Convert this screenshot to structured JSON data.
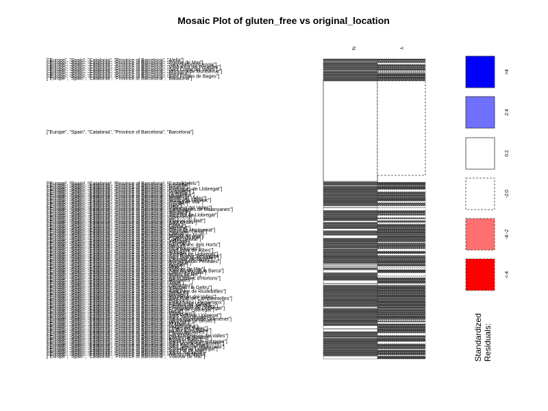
{
  "chart_data": {
    "type": "mosaic",
    "title": "Mosaic Plot of gluten_free vs original_location",
    "columns": [
      "N",
      "Y"
    ],
    "highlighted_row": {
      "label": "[\"Europe\", \"Spain\", \"Catalonia\", \"Province of Barcelona\", \"Barcelona\"]",
      "residual_class": "0:2"
    },
    "row_labels": [
      "[\"Europe\", \"Spain\", \"Catalonia\", \"Province of Barcelona\", \"Alella\"]",
      "[\"Europe\", \"Spain\", \"Catalonia\", \"Province of Barcelona\", \"Arenys de Mar\"]",
      "[\"Europe\", \"Spain\", \"Catalonia\", \"Province of Barcelona\", \"Sant Sadurni d'Anoia\"]",
      "[\"Europe\", \"Spain\", \"Catalonia\", \"Province of Barcelona\", \"Vilafranca del Penedes\"]",
      "[\"Europe\", \"Spain\", \"Catalonia\", \"Province of Barcelona\", \"Sant Cugat del Valles\"]",
      "[\"Europe\", \"Spain\", \"Catalonia\", \"Province of Barcelona\", \"Monistrol de Montserrat\"]",
      "[\"Europe\", \"Spain\", \"Catalonia\", \"Province of Barcelona\", \"Manresa\"]",
      "[\"Europe\", \"Spain\", \"Catalonia\", \"Province of Barcelona\", \"Sant Fruitos de Bages\"]",
      "[\"Europe\", \"Spain\", \"Catalonia\", \"Province of Barcelona\", \"Badalona\"]",
      "[\"Europe\", \"Spain\", \"Catalonia\", \"Province of Barcelona\", \"Castelldefels\"]",
      "[\"Europe\", \"Spain\", \"Catalonia\", \"Province of Barcelona\", \"Cornella\"]",
      "[\"Europe\", \"Spain\", \"Catalonia\", \"Province of Barcelona\", \"Dosrius\"]",
      "[\"Europe\", \"Spain\", \"Catalonia\", \"Province of Barcelona\", \"Esplugues de Llobregat\"]",
      "[\"Europe\", \"Spain\", \"Catalonia\", \"Province of Barcelona\", \"Granollers\"]",
      "[\"Europe\", \"Spain\", \"Catalonia\", \"Province of Barcelona\", \"Igualada\"]",
      "[\"Europe\", \"Spain\", \"Catalonia\", \"Province of Barcelona\", \"La Garriga\"]",
      "[\"Europe\", \"Spain\", \"Catalonia\", \"Province of Barcelona\", \"Mataro\"]",
      "[\"Europe\", \"Spain\", \"Catalonia\", \"Province of Barcelona\", \"Mollet del Valles\"]",
      "[\"Europe\", \"Spain\", \"Catalonia\", \"Province of Barcelona\", \"Montcada i Reixac\"]",
      "[\"Europe\", \"Spain\", \"Catalonia\", \"Province of Barcelona\", \"Premia de Mar\"]",
      "[\"Europe\", \"Spain\", \"Catalonia\", \"Province of Barcelona\", \"Ripollet\"]",
      "[\"Europe\", \"Spain\", \"Catalonia\", \"Province of Barcelona\", \"Rubi\"]",
      "[\"Europe\", \"Spain\", \"Catalonia\", \"Province of Barcelona\", \"Vilanova del Valles\"]",
      "[\"Europe\", \"Spain\", \"Catalonia\", \"Province of Barcelona\", \"Santa Agnes de Malanyanes\"]",
      "[\"Europe\", \"Spain\", \"Catalonia\", \"Province of Barcelona\", \"Sabadell\"]",
      "[\"Europe\", \"Spain\", \"Catalonia\", \"Province of Barcelona\", \"Terrassa\"]",
      "[\"Europe\", \"Spain\", \"Catalonia\", \"Province of Barcelona\", \"Sant Boi de Llobregat\"]",
      "[\"Europe\", \"Spain\", \"Catalonia\", \"Province of Barcelona\", \"Sentmenat\"]",
      "[\"Europe\", \"Spain\", \"Catalonia\", \"Province of Barcelona\", \"Vic\"]",
      "[\"Europe\", \"Spain\", \"Catalonia\", \"Province of Barcelona\", \"Vilassar de Dalt\"]",
      "[\"Europe\", \"Spain\", \"Catalonia\", \"Province of Barcelona\", \"Sant Celoni\"]",
      "[\"Europe\", \"Spain\", \"Catalonia\", \"Province of Barcelona\", \"Piera\"]",
      "[\"Europe\", \"Spain\", \"Catalonia\", \"Province of Barcelona\", \"Gelida\"]",
      "[\"Europe\", \"Spain\", \"Catalonia\", \"Province of Barcelona\", \"Martorell\"]",
      "[\"Europe\", \"Spain\", \"Catalonia\", \"Province of Barcelona\", \"Olesa de Montserrat\"]",
      "[\"Europe\", \"Spain\", \"Catalonia\", \"Province of Barcelona\", \"Sant Joan Despi\"]",
      "[\"Europe\", \"Spain\", \"Catalonia\", \"Province of Barcelona\", \"Calella\"]",
      "[\"Europe\", \"Spain\", \"Catalonia\", \"Province of Barcelona\", \"Malgrat de Mar\"]",
      "[\"Europe\", \"Spain\", \"Catalonia\", \"Province of Barcelona\", \"Pineda de Mar\"]",
      "[\"Europe\", \"Spain\", \"Catalonia\", \"Province of Barcelona\", \"Canet de Mar\"]",
      "[\"Europe\", \"Spain\", \"Catalonia\", \"Province of Barcelona\", \"Vallirana\"]",
      "[\"Europe\", \"Spain\", \"Catalonia\", \"Province of Barcelona\", \"Cervello\"]",
      "[\"Europe\", \"Spain\", \"Catalonia\", \"Province of Barcelona\", \"Sant Vicenc dels Horts\"]",
      "[\"Europe\", \"Spain\", \"Catalonia\", \"Province of Barcelona\", \"Berga\"]",
      "[\"Europe\", \"Spain\", \"Catalonia\", \"Province of Barcelona\", \"Lliça d'Amunt\"]",
      "[\"Europe\", \"Spain\", \"Catalonia\", \"Province of Barcelona\", \"Sant Pere de Ribes\"]",
      "[\"Europe\", \"Spain\", \"Catalonia\", \"Province of Barcelona\", \"Subirats\"]",
      "[\"Europe\", \"Spain\", \"Catalonia\", \"Province of Barcelona\", \"Torrelles de Llobregat\"]",
      "[\"Europe\", \"Spain\", \"Catalonia\", \"Province of Barcelona\", \"Sant Esteve Sesrovires\"]",
      "[\"Europe\", \"Spain\", \"Catalonia\", \"Province of Barcelona\", \"Sant Quirze del Valles\"]",
      "[\"Europe\", \"Spain\", \"Catalonia\", \"Province of Barcelona\", \"Castellar del Valles\"]",
      "[\"Europe\", \"Spain\", \"Catalonia\", \"Province of Barcelona\", \"Avinyonet del Penedes\"]",
      "[\"Europe\", \"Spain\", \"Catalonia\", \"Province of Barcelona\", \"Torrelavit\"]",
      "[\"Europe\", \"Spain\", \"Catalonia\", \"Province of Barcelona\", \"Begues\"]",
      "[\"Europe\", \"Spain\", \"Catalonia\", \"Province of Barcelona\", \"Moia\"]",
      "[\"Europe\", \"Spain\", \"Catalonia\", \"Province of Barcelona\", \"Vilassar de Mar\"]",
      "[\"Europe\", \"Spain\", \"Catalonia\", \"Province of Barcelona\", \"Sant Andreu de la Barca\"]",
      "[\"Europe\", \"Spain\", \"Catalonia\", \"Province of Barcelona\", \"Cabrera d'Anoia\"]",
      "[\"Europe\", \"Spain\", \"Catalonia\", \"Province of Barcelona\", \"Molins de Rei\"]",
      "[\"Europe\", \"Spain\", \"Catalonia\", \"Province of Barcelona\", \"Santpedor\"]",
      "[\"Europe\", \"Spain\", \"Catalonia\", \"Province of Barcelona\", \"Sant Llorenc d'Hortons\"]",
      "[\"Europe\", \"Spain\", \"Catalonia\", \"Province of Barcelona\", \"Navarcles\"]",
      "[\"Europe\", \"Spain\", \"Catalonia\", \"Province of Barcelona\", \"Tiana\"]",
      "[\"Europe\", \"Spain\", \"Catalonia\", \"Province of Barcelona\", \"Teia\"]",
      "[\"Europe\", \"Spain\", \"Catalonia\", \"Province of Barcelona\", \"Cardedeu\"]",
      "[\"Europe\", \"Spain\", \"Catalonia\", \"Province of Barcelona\", \"Vilanova i la Geltru\"]",
      "[\"Europe\", \"Spain\", \"Catalonia\", \"Province of Barcelona\", \"Sitges\"]",
      "[\"Europe\", \"Spain\", \"Catalonia\", \"Province of Barcelona\", \"Sant Pere de Riudebitlles\"]",
      "[\"Europe\", \"Spain\", \"Catalonia\", \"Province of Barcelona\", \"Tordera\"]",
      "[\"Europe\", \"Spain\", \"Catalonia\", \"Province of Barcelona\", \"Manlleu\"]",
      "[\"Europe\", \"Spain\", \"Catalonia\", \"Province of Barcelona\", \"Montornes del Valles\"]",
      "[\"Europe\", \"Spain\", \"Catalonia\", \"Province of Barcelona\", \"Sant Fost de Campsentelles\"]",
      "[\"Europe\", \"Spain\", \"Catalonia\", \"Province of Barcelona\", \"Polinya\"]",
      "[\"Europe\", \"Spain\", \"Catalonia\", \"Province of Barcelona\", \"Palau-solita i Plegamans\"]",
      "[\"Europe\", \"Spain\", \"Catalonia\", \"Province of Barcelona\", \"Barbera del Valles\"]",
      "[\"Europe\", \"Spain\", \"Catalonia\", \"Province of Barcelona\", \"Cerdanyola del Valles\"]",
      "[\"Europe\", \"Spain\", \"Catalonia\", \"Province of Barcelona\", \"L'Hospitalet de Llobregat\"]",
      "[\"Europe\", \"Spain\", \"Catalonia\", \"Province of Barcelona\", \"El Prat de Llobregat\"]",
      "[\"Europe\", \"Spain\", \"Catalonia\", \"Province of Barcelona\", \"Gava\"]",
      "[\"Europe\", \"Spain\", \"Catalonia\", \"Province of Barcelona\", \"Viladecans\"]",
      "[\"Europe\", \"Spain\", \"Catalonia\", \"Province of Barcelona\", \"Sant Feliu de Llobregat\"]",
      "[\"Europe\", \"Spain\", \"Catalonia\", \"Province of Barcelona\", \"Sant Just Desvern\"]",
      "[\"Europe\", \"Spain\", \"Catalonia\", \"Province of Barcelona\", \"Santa Coloma de Gramenet\"]",
      "[\"Europe\", \"Spain\", \"Catalonia\", \"Province of Barcelona\", \"Sant Adria de Besos\"]",
      "[\"Europe\", \"Spain\", \"Catalonia\", \"Province of Barcelona\", \"Montgat\"]",
      "[\"Europe\", \"Spain\", \"Catalonia\", \"Province of Barcelona\", \"El Masnou\"]",
      "[\"Europe\", \"Spain\", \"Catalonia\", \"Province of Barcelona\", \"Vallgorguina\"]",
      "[\"Europe\", \"Spain\", \"Catalonia\", \"Province of Barcelona\", \"Llinars del Valles\"]",
      "[\"Europe\", \"Spain\", \"Catalonia\", \"Province of Barcelona\", \"La Roca del Valles\"]",
      "[\"Europe\", \"Spain\", \"Catalonia\", \"Province of Barcelona\", \"Parets del Valles\"]",
      "[\"Europe\", \"Spain\", \"Catalonia\", \"Province of Barcelona\", \"Canovelles\"]",
      "[\"Europe\", \"Spain\", \"Catalonia\", \"Province of Barcelona\", \"Les Franqueses del Valles\"]",
      "[\"Europe\", \"Spain\", \"Catalonia\", \"Province of Barcelona\", \"Caldes de Montbui\"]",
      "[\"Europe\", \"Spain\", \"Catalonia\", \"Province of Barcelona\", \"Bigues i Riells\"]",
      "[\"Europe\", \"Spain\", \"Catalonia\", \"Province of Barcelona\", \"Santa Eulalia de Ronçana\"]",
      "[\"Europe\", \"Spain\", \"Catalonia\", \"Province of Barcelona\", \"Sant Vicenc de Castellet\"]",
      "[\"Europe\", \"Spain\", \"Catalonia\", \"Province of Barcelona\", \"Sant Pau d'Ordal\"]",
      "[\"Europe\", \"Spain\", \"Catalonia\", \"Province of Barcelona\", \"Sant Joan de Vilatorrada\"]",
      "[\"Europe\", \"Spain\", \"Catalonia\", \"Province of Barcelona\", \"Cornella de Llobregat\"]",
      "[\"Europe\", \"Spain\", \"Catalonia\", \"Province of Barcelona\", \"Sant Pol de Mar\"]",
      "[\"Europe\", \"Spain\", \"Catalonia\", \"Province of Barcelona\", \"Santa Susanna\"]",
      "[\"Europe\", \"Spain\", \"Catalonia\", \"Province of Barcelona\", \"Arenys de Munt\"]",
      "[\"Europe\", \"Spain\", \"Catalonia\", \"Province of Barcelona\", \"Vilassar de Mar\"]"
    ],
    "legend": {
      "title_line1": "Standardized",
      "title_line2": "Residuals:",
      "entries": [
        {
          "label": ">4",
          "fill": "#0000ff",
          "dashed": false
        },
        {
          "label": "2:4",
          "fill": "#7070ff",
          "dashed": false
        },
        {
          "label": "0:2",
          "fill": "#ffffff",
          "dashed": false
        },
        {
          "label": "-2:0",
          "fill": "#ffffff",
          "dashed": true
        },
        {
          "label": "-4:-2",
          "fill": "#ff7070",
          "dashed": true
        },
        {
          "label": "<-4",
          "fill": "#ff0000",
          "dashed": true
        }
      ]
    }
  }
}
